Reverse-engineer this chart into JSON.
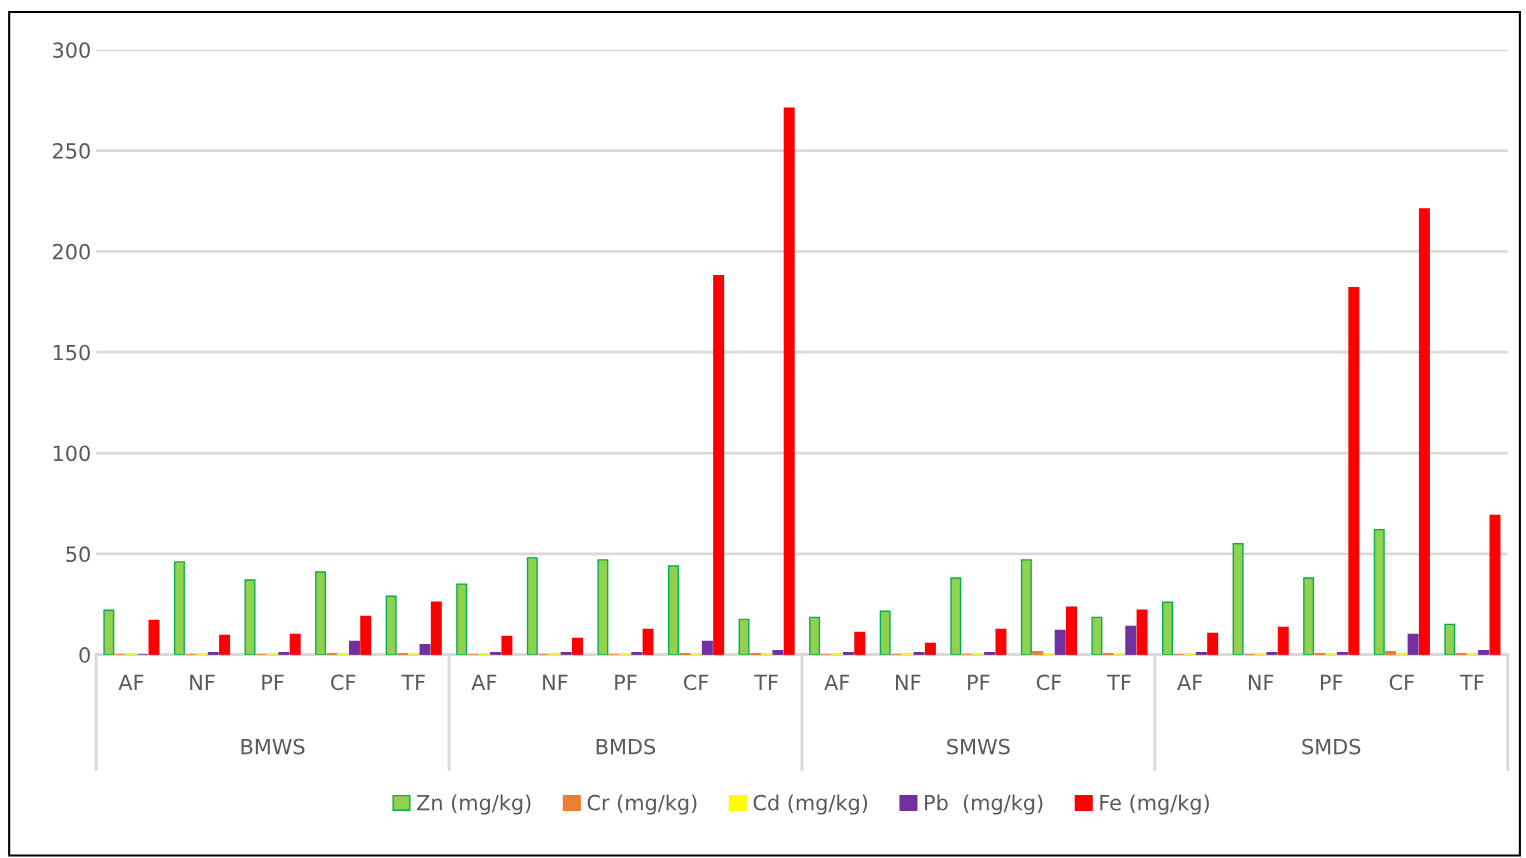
{
  "chart_data": {
    "type": "bar",
    "categories": [
      "AF",
      "NF",
      "PF",
      "CF",
      "TF",
      "AF",
      "NF",
      "PF",
      "CF",
      "TF",
      "AF",
      "NF",
      "PF",
      "CF",
      "TF",
      "AF",
      "NF",
      "PF",
      "CF",
      "TF"
    ],
    "series": [
      {
        "name": "Zn (mg/kg)",
        "color": "#92d050",
        "values": [
          22,
          46,
          37,
          41,
          29,
          35,
          48,
          47,
          44,
          17.5,
          18.5,
          21.5,
          38,
          47,
          18.5,
          26,
          55,
          38,
          62,
          15
        ]
      },
      {
        "name": "Cr (mg/kg)",
        "color": "#ed7d31",
        "values": [
          0,
          0,
          0,
          0.5,
          0.5,
          0,
          0,
          0,
          0.5,
          0.5,
          0,
          0,
          0,
          1.5,
          0.5,
          0,
          0,
          0.5,
          1.5,
          0.5
        ]
      },
      {
        "name": "Cd (mg/kg)",
        "color": "#ffff00",
        "values": [
          0,
          0,
          0,
          0,
          0,
          0,
          0,
          0,
          0,
          0,
          0,
          0,
          0,
          0,
          0,
          0,
          0,
          0,
          0,
          0
        ]
      },
      {
        "name": "Pb  (mg/kg)",
        "color": "#7030a0",
        "values": [
          0,
          1,
          1,
          6.5,
          5,
          1,
          1,
          1,
          6.5,
          2,
          1,
          1,
          1,
          12,
          14,
          1,
          1,
          1,
          10,
          2
        ]
      },
      {
        "name": "Fe (mg/kg)",
        "color": "#ff0000",
        "values": [
          17,
          9.5,
          10,
          19,
          26,
          9,
          8,
          12.5,
          188,
          271,
          11,
          5.5,
          12.5,
          23.5,
          22,
          10.5,
          13.5,
          182,
          221,
          69
        ]
      }
    ],
    "ylim": [
      0,
      300
    ],
    "yticks": [
      0,
      50,
      100,
      150,
      200,
      250,
      300
    ],
    "grid": "y",
    "legend": "bottom",
    "annotations": [
      "BMWS",
      "BMDS",
      "SMWS",
      "SMDS"
    ]
  }
}
